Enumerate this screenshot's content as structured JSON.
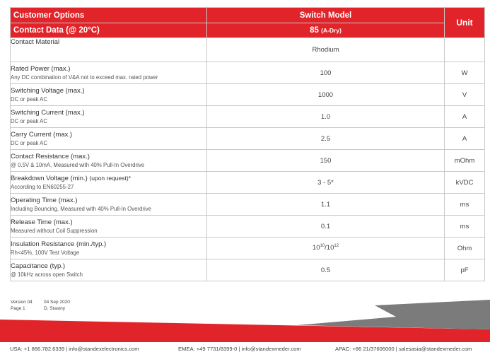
{
  "header": {
    "customer_options": "Customer Options",
    "switch_model": "Switch Model",
    "unit": "Unit",
    "contact_data": "Contact Data (@ 20°C)",
    "model_number": "85",
    "model_suffix": "(A-Dry)"
  },
  "rows": [
    {
      "name": "Contact Material",
      "extra": "",
      "desc": "",
      "value": "Rhodium",
      "unit": ""
    },
    {
      "name": "Rated Power (max.)",
      "extra": "",
      "desc": "Any DC combination of V&A not to exceed max. rated power",
      "value": "100",
      "unit": "W"
    },
    {
      "name": "Switching Voltage (max.)",
      "extra": "",
      "desc": "DC or peak AC",
      "value": "1000",
      "unit": "V"
    },
    {
      "name": "Switching Current (max.)",
      "extra": "",
      "desc": "DC or peak AC",
      "value": "1.0",
      "unit": "A"
    },
    {
      "name": "Carry Current (max.)",
      "extra": "",
      "desc": "DC or peak AC",
      "value": "2.5",
      "unit": "A"
    },
    {
      "name": "Contact Resistance (max.)",
      "extra": "",
      "desc": "@ 0.5V & 10mA, Measured with 40% Pull-In Overdrive",
      "value": "150",
      "unit": "mOhm"
    },
    {
      "name": "Breakdown Voltage (min.)",
      "extra": "(upon request)*",
      "desc": "According to EN60255-27",
      "value": "3 - 5*",
      "unit": "kVDC"
    },
    {
      "name": "Operating Time (max.)",
      "extra": "",
      "desc": "Including Bouncing, Measured with 40% Pull-In Overdrive",
      "value": "1.1",
      "unit": "ms"
    },
    {
      "name": "Release Time (max.)",
      "extra": "",
      "desc": "Measured without Coil Suppression",
      "value": "0.1",
      "unit": "ms"
    },
    {
      "name": "Insulation Resistance (min./typ.)",
      "extra": "",
      "desc": "Rh<45%, 100V Test Voltage",
      "value": "",
      "unit": "Ohm"
    },
    {
      "name": "Capacitance (typ.)",
      "extra": "",
      "desc": "@ 10kHz across open Switch",
      "value": "0.5",
      "unit": "pF"
    }
  ],
  "insulation_value": {
    "base1": "10",
    "exp1": "10",
    "sep": "/10",
    "exp2": "12"
  },
  "meta": {
    "version_label": "Version 04",
    "date": "04 Sep 2020",
    "page_label": "Page 1",
    "author": "D. Stastny"
  },
  "footer": {
    "usa": "USA: +1 866.782.6339 | info@standexelectronics.com",
    "emea": "EMEA: +49 7731/8399-0 | info@standexmeder.com",
    "apac": "APAC: +86 21/37606000 | salesasia@standexmeder.com"
  },
  "colors": {
    "brand_red": "#e0242a",
    "band_gray": "#7b7b7b"
  }
}
